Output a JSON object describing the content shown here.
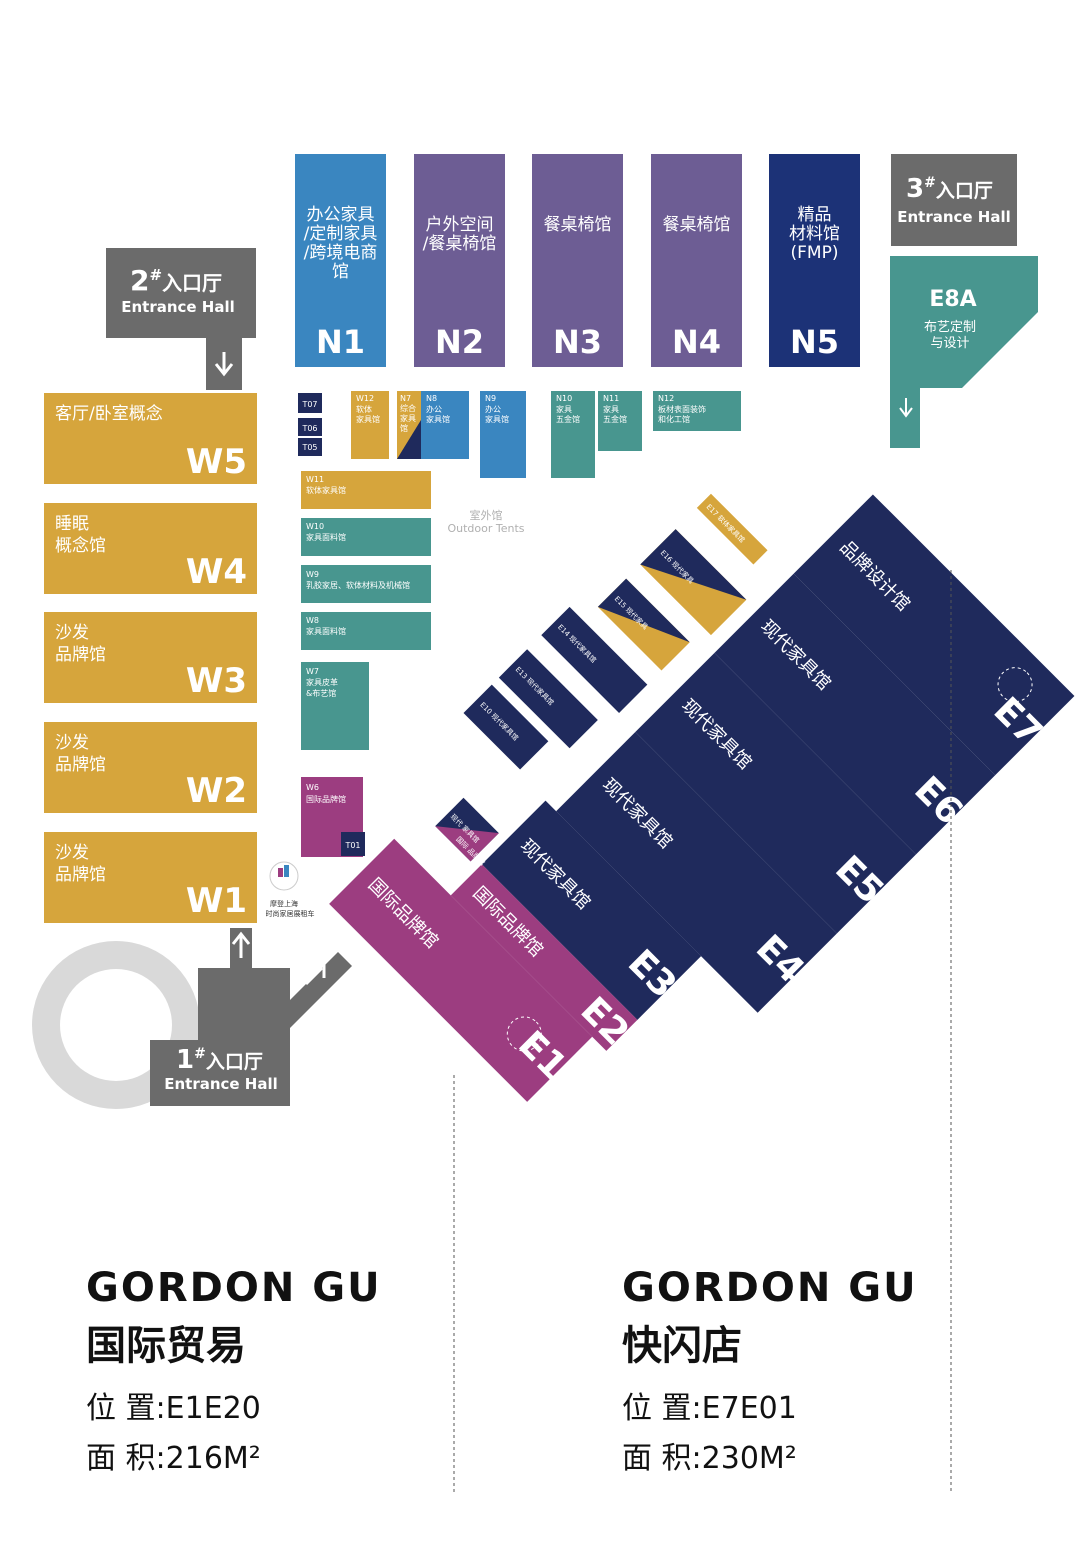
{
  "colors": {
    "navy": "#1f2a5c",
    "blue": "#3a86c0",
    "purple": "#6d5d94",
    "deep_blue": "#1c3277",
    "grey": "#6b6b6b",
    "teal": "#48968f",
    "gold": "#d6a53c",
    "magenta": "#9c3d80",
    "light_grey": "#d9d9d9"
  },
  "entrances": {
    "e1": {
      "num": "1",
      "sup": "#",
      "cn": "入口厅",
      "en": "Entrance Hall"
    },
    "e2": {
      "num": "2",
      "sup": "#",
      "cn": "入口厅",
      "en": "Entrance Hall"
    },
    "e3": {
      "num": "3",
      "sup": "#",
      "cn": "入口厅",
      "en": "Entrance Hall"
    }
  },
  "north_halls": [
    {
      "code": "N1",
      "lines": [
        "办公家具",
        "/定制家具",
        "/跨境电商",
        "馆"
      ]
    },
    {
      "code": "N2",
      "lines": [
        "户外空间",
        "/餐桌椅馆"
      ]
    },
    {
      "code": "N3",
      "lines": [
        "餐桌椅馆"
      ]
    },
    {
      "code": "N4",
      "lines": [
        "餐桌椅馆"
      ]
    },
    {
      "code": "N5",
      "lines": [
        "精品",
        "材料馆",
        "(FMP)"
      ]
    }
  ],
  "e8a": {
    "code": "E8A",
    "lines": [
      "布艺定制",
      "与设计"
    ]
  },
  "west_halls": [
    {
      "code": "W5",
      "lines": [
        "客厅/卧室概念"
      ]
    },
    {
      "code": "W4",
      "lines": [
        "睡眠",
        "概念馆"
      ]
    },
    {
      "code": "W3",
      "lines": [
        "沙发",
        "品牌馆"
      ]
    },
    {
      "code": "W2",
      "lines": [
        "沙发",
        "品牌馆"
      ]
    },
    {
      "code": "W1",
      "lines": [
        "沙发",
        "品牌馆"
      ]
    }
  ],
  "small_halls": {
    "t07": "T07",
    "t06": "T06",
    "t05": "T05",
    "t01": "T01",
    "w12": [
      "W12",
      "软体",
      "家具馆"
    ],
    "n7": [
      "N7",
      "综合",
      "家具",
      "馆"
    ],
    "n8": [
      "N8",
      "办公",
      "家具馆"
    ],
    "n9": [
      "N9",
      "办公",
      "家具馆"
    ],
    "n10": [
      "N10",
      "家具",
      "五金馆"
    ],
    "n11": [
      "N11",
      "家具",
      "五金馆"
    ],
    "n12": [
      "N12",
      "板材表面装饰",
      "和化工馆"
    ],
    "w11": [
      "W11",
      "软体家具馆"
    ],
    "w10": [
      "W10",
      "家具面料馆"
    ],
    "w9": [
      "W9",
      "乳胶家居、软体材料及机械馆"
    ],
    "w8": [
      "W8",
      "家具面料馆"
    ],
    "w7": [
      "W7",
      "家具皮革",
      "&布艺馆"
    ],
    "w6": [
      "W6",
      "国际品牌馆"
    ]
  },
  "outdoor": {
    "cn": "室外馆",
    "en": "Outdoor Tents"
  },
  "east_halls": [
    {
      "code": "E1",
      "name": "国际品牌馆"
    },
    {
      "code": "E2",
      "name": "国际品牌馆"
    },
    {
      "code": "E3",
      "name": "现代家具馆"
    },
    {
      "code": "E4",
      "name": "现代家具馆"
    },
    {
      "code": "E5",
      "name": "现代家具馆"
    },
    {
      "code": "E6",
      "name": "现代家具馆"
    },
    {
      "code": "E7",
      "name": "品牌设计馆"
    }
  ],
  "mini_labels": {
    "e17": "E17 软体家具馆",
    "e16": "E16 现代家具",
    "e15": "E15 现代家具",
    "e14": "E14 现代家具馆",
    "e13": "E13 现代家具馆",
    "e10": "E10 现代家具馆",
    "e9a": "现代 家具馆",
    "e9b": "国际 品牌馆"
  },
  "logo_caption": [
    "摩登上海",
    "时尚家居展租车"
  ],
  "booths": [
    {
      "brand": "GORDON GU",
      "name": "国际贸易",
      "position_label": "位 置:",
      "position": "E1E20",
      "area_label": "面 积:",
      "area": "216M²"
    },
    {
      "brand": "GORDON GU",
      "name": "快闪店",
      "position_label": "位 置:",
      "position": "E7E01",
      "area_label": "面 积:",
      "area": "230M²"
    }
  ]
}
